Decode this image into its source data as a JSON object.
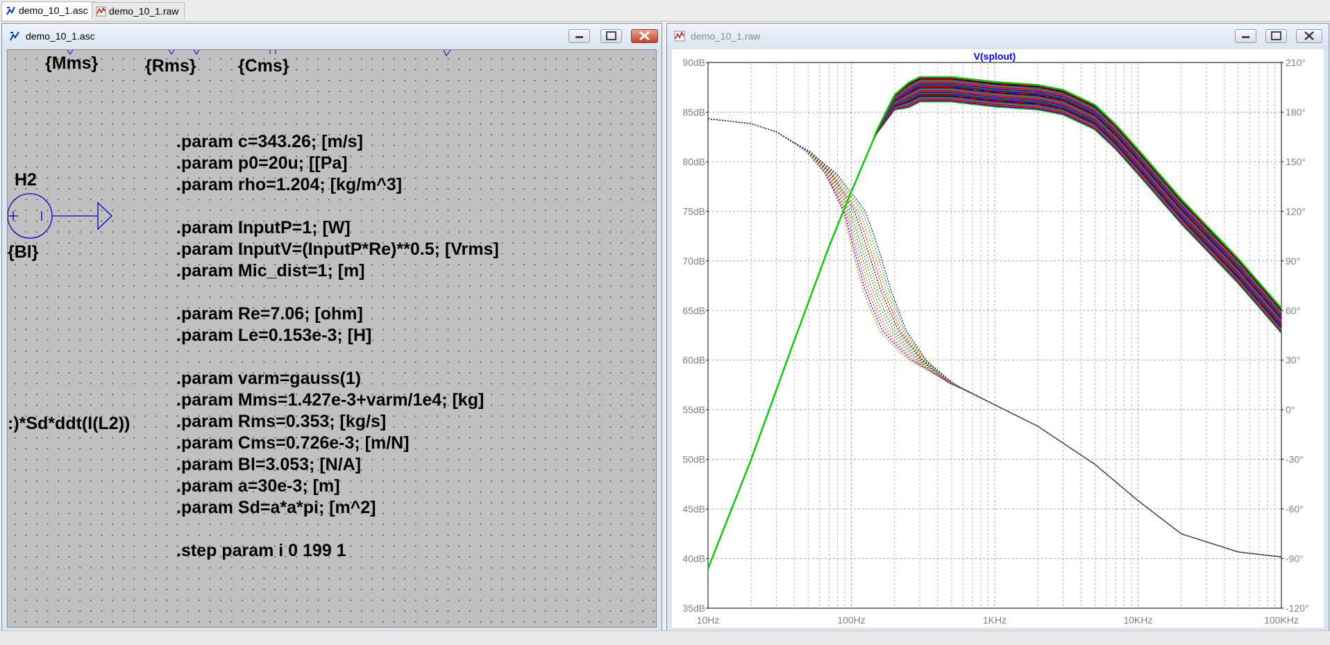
{
  "tabs": [
    {
      "label": "demo_10_1.asc",
      "icon": "schematic-icon",
      "active": true
    },
    {
      "label": "demo_10_1.raw",
      "icon": "waveform-icon",
      "active": false
    }
  ],
  "schematic_window": {
    "title": "demo_10_1.asc",
    "labels": {
      "mms": "{Mms}",
      "rms": "{Rms}",
      "cms": "{Cms}",
      "h2": "H2",
      "bl": "{Bl}",
      "expr": ":)*Sd*ddt(I(L2))"
    },
    "directives": [
      ".param c=343.26; [m/s]",
      ".param p0=20u; [[Pa]",
      ".param rho=1.204; [kg/m^3]",
      ".param InputP=1; [W]",
      ".param InputV=(InputP*Re)**0.5; [Vrms]",
      ".param Mic_dist=1; [m]",
      ".param Re=7.06; [ohm]",
      ".param Le=0.153e-3; [H]",
      ".param varm=gauss(1)",
      ".param Mms=1.427e-3+varm/1e4; [kg]",
      ".param Rms=0.353; [kg/s]",
      ".param Cms=0.726e-3; [m/N]",
      ".param Bl=3.053; [N/A]",
      ".param a=30e-3; [m]",
      ".param Sd=a*a*pi; [m^2]",
      ".step param i 0 199 1"
    ]
  },
  "plot_window": {
    "title": "demo_10_1.raw",
    "trace_label": "V(splout)",
    "trace_label_color": "#0000ff",
    "chart_data": {
      "type": "line",
      "title": "V(splout)",
      "x_scale": "log",
      "x_range_hz": [
        10,
        100000
      ],
      "x_ticks": [
        "10Hz",
        "100Hz",
        "1KHz",
        "10KHz",
        "100KHz"
      ],
      "y_left_range_db": [
        35,
        90
      ],
      "y_left_ticks": [
        "90dB",
        "85dB",
        "80dB",
        "75dB",
        "70dB",
        "65dB",
        "60dB",
        "55dB",
        "50dB",
        "45dB",
        "40dB",
        "35dB"
      ],
      "y_right_range_deg": [
        -120,
        210
      ],
      "y_right_ticks": [
        "210°",
        "180°",
        "150°",
        "120°",
        "90°",
        "60°",
        "30°",
        "0°",
        "-30°",
        "-60°",
        "-90°",
        "-120°"
      ],
      "grid": true,
      "step_count": 200,
      "magnitude_db": {
        "freq_hz": [
          10,
          20,
          40,
          70,
          100,
          150,
          200,
          300,
          500,
          1000,
          2000,
          3000,
          5000,
          7000,
          10000,
          20000,
          50000,
          100000
        ],
        "nominal": [
          39,
          50,
          62,
          71.5,
          77,
          83,
          86,
          87.3,
          87.3,
          86.8,
          86.5,
          86,
          84.5,
          82.5,
          80,
          75,
          69,
          64
        ],
        "spread_db": 2.5
      },
      "phase_deg": {
        "freq_hz": [
          10,
          20,
          30,
          50,
          70,
          100,
          150,
          200,
          300,
          500,
          1000,
          2000,
          5000,
          10000,
          20000,
          50000,
          100000
        ],
        "nominal": [
          176,
          173,
          168,
          156,
          143,
          120,
          72,
          48,
          30,
          16,
          3,
          -10,
          -33,
          -55,
          -75,
          -86,
          -89
        ]
      },
      "series_colors": [
        "#00c000",
        "#000080",
        "#ff00ff",
        "#c00000",
        "#808000",
        "#008080",
        "#800080",
        "#000000",
        "#ff0000",
        "#0000ff"
      ],
      "envelope_color": "#00d000",
      "phase_color": "#c08000"
    }
  }
}
